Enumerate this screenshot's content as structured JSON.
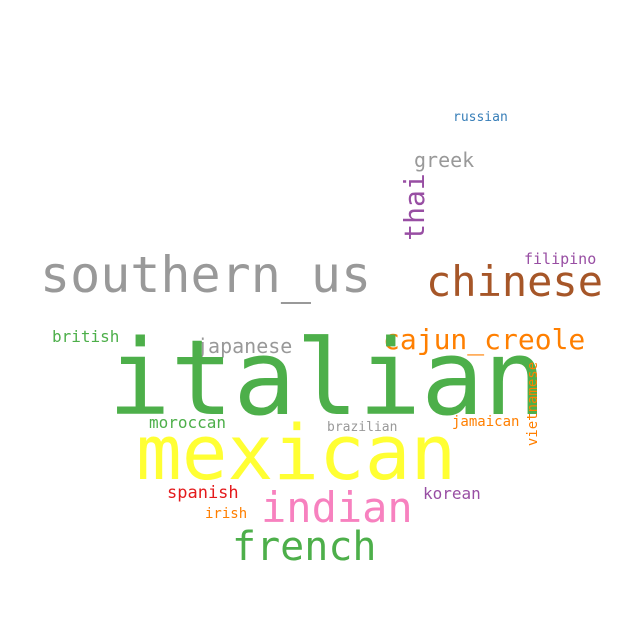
{
  "colors": {
    "background": "#ffffff",
    "green": "#4daf4a",
    "yellow": "#ffff33",
    "gray": "#999999",
    "brown": "#a65628",
    "orange": "#ff7f00",
    "pink": "#f781bf",
    "purple": "#984ea3",
    "red": "#e41a1c",
    "blue": "#377eb8"
  },
  "words": {
    "italian": "italian",
    "mexican": "mexican",
    "southern_us": "southern_us",
    "chinese": "chinese",
    "french": "french",
    "indian": "indian",
    "cajun_creole": "cajun_creole",
    "thai": "thai",
    "japanese": "japanese",
    "greek": "greek",
    "spanish": "spanish",
    "korean": "korean",
    "vietnamese": "vietnamese",
    "moroccan": "moroccan",
    "british": "british",
    "filipino": "filipino",
    "irish": "irish",
    "jamaican": "jamaican",
    "russian": "russian",
    "brazilian": "brazilian"
  }
}
